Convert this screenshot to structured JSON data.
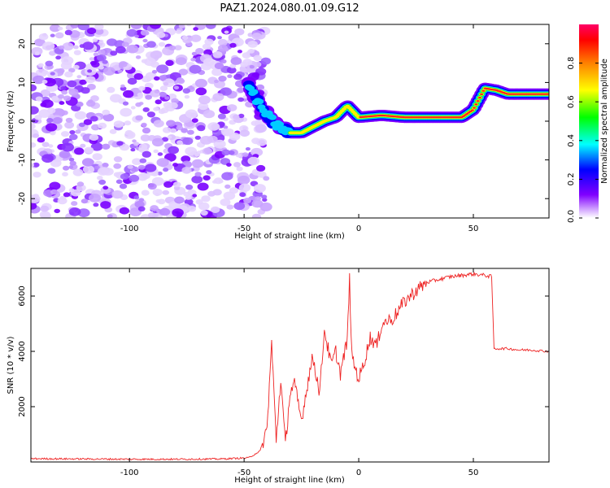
{
  "title": "PAZ1.2024.080.01.09.G12",
  "colors": {
    "spectrum_low": "#8000ff",
    "spectrum_high": "#ff0000",
    "snr_line": "#ee2222"
  },
  "chart_data": [
    {
      "type": "heatmap",
      "name": "spectrogram",
      "xlabel": "Height of straight line (km)",
      "ylabel": "Frequency (Hz)",
      "xlim": [
        -143,
        83
      ],
      "ylim": [
        -25,
        25
      ],
      "x_ticks": [
        -100,
        -50,
        0,
        50
      ],
      "x_tick_labels": [
        "-100",
        "-50",
        "0",
        "50"
      ],
      "y_ticks": [
        20,
        10,
        0,
        -10,
        -20
      ],
      "y_tick_labels": [
        "20",
        "10",
        "0",
        "-10",
        "-20"
      ],
      "noise_region_x": [
        -143,
        -45
      ],
      "colorbar": {
        "label": "Normalized spectral amplitude",
        "range": [
          0,
          1
        ],
        "ticks": [
          0.0,
          0.2,
          0.4,
          0.6,
          0.8
        ],
        "tick_labels": [
          "0.0",
          "0.2",
          "0.4",
          "0.6",
          "0.8"
        ]
      },
      "signal_trace": [
        {
          "x": -48,
          "y": 9
        },
        {
          "x": -42,
          "y": 3
        },
        {
          "x": -36,
          "y": -1
        },
        {
          "x": -30,
          "y": -3
        },
        {
          "x": -25,
          "y": -3
        },
        {
          "x": -20,
          "y": -1.5
        },
        {
          "x": -15,
          "y": 0
        },
        {
          "x": -10,
          "y": 1
        },
        {
          "x": -5,
          "y": 4
        },
        {
          "x": 0,
          "y": 1
        },
        {
          "x": 10,
          "y": 1.5
        },
        {
          "x": 20,
          "y": 1
        },
        {
          "x": 35,
          "y": 1
        },
        {
          "x": 45,
          "y": 1
        },
        {
          "x": 50,
          "y": 3
        },
        {
          "x": 55,
          "y": 8.5
        },
        {
          "x": 60,
          "y": 8
        },
        {
          "x": 65,
          "y": 7
        },
        {
          "x": 75,
          "y": 7
        },
        {
          "x": 83,
          "y": 7
        }
      ]
    },
    {
      "type": "line",
      "name": "snr",
      "xlabel": "Height of straight line (km)",
      "ylabel": "SNR (10 * v/v)",
      "xlim": [
        -143,
        83
      ],
      "ylim": [
        0,
        7000
      ],
      "x_ticks": [
        -100,
        -50,
        0,
        50
      ],
      "x_tick_labels": [
        "-100",
        "-50",
        "0",
        "50"
      ],
      "y_ticks": [
        2000,
        4000,
        6000
      ],
      "y_tick_labels": [
        "2000",
        "4000",
        "6000"
      ],
      "points": [
        {
          "x": -143,
          "y": 120
        },
        {
          "x": -120,
          "y": 110
        },
        {
          "x": -100,
          "y": 100
        },
        {
          "x": -80,
          "y": 100
        },
        {
          "x": -60,
          "y": 110
        },
        {
          "x": -48,
          "y": 150
        },
        {
          "x": -43,
          "y": 400
        },
        {
          "x": -40,
          "y": 1200
        },
        {
          "x": -38,
          "y": 4300
        },
        {
          "x": -36,
          "y": 800
        },
        {
          "x": -34,
          "y": 3000
        },
        {
          "x": -32,
          "y": 600
        },
        {
          "x": -30,
          "y": 2500
        },
        {
          "x": -28,
          "y": 2800
        },
        {
          "x": -25,
          "y": 1500
        },
        {
          "x": -22,
          "y": 3000
        },
        {
          "x": -20,
          "y": 3800
        },
        {
          "x": -17,
          "y": 2500
        },
        {
          "x": -15,
          "y": 4800
        },
        {
          "x": -12,
          "y": 3500
        },
        {
          "x": -10,
          "y": 4000
        },
        {
          "x": -8,
          "y": 3200
        },
        {
          "x": -5,
          "y": 4400
        },
        {
          "x": -4,
          "y": 6600
        },
        {
          "x": -3,
          "y": 3800
        },
        {
          "x": 0,
          "y": 3000
        },
        {
          "x": 2,
          "y": 3500
        },
        {
          "x": 5,
          "y": 4500
        },
        {
          "x": 8,
          "y": 4200
        },
        {
          "x": 10,
          "y": 5000
        },
        {
          "x": 15,
          "y": 5200
        },
        {
          "x": 20,
          "y": 5800
        },
        {
          "x": 25,
          "y": 6200
        },
        {
          "x": 30,
          "y": 6500
        },
        {
          "x": 40,
          "y": 6700
        },
        {
          "x": 50,
          "y": 6800
        },
        {
          "x": 55,
          "y": 6750
        },
        {
          "x": 58,
          "y": 6700
        },
        {
          "x": 59,
          "y": 4100
        },
        {
          "x": 65,
          "y": 4100
        },
        {
          "x": 70,
          "y": 4050
        },
        {
          "x": 75,
          "y": 4050
        },
        {
          "x": 83,
          "y": 4000
        }
      ]
    }
  ]
}
